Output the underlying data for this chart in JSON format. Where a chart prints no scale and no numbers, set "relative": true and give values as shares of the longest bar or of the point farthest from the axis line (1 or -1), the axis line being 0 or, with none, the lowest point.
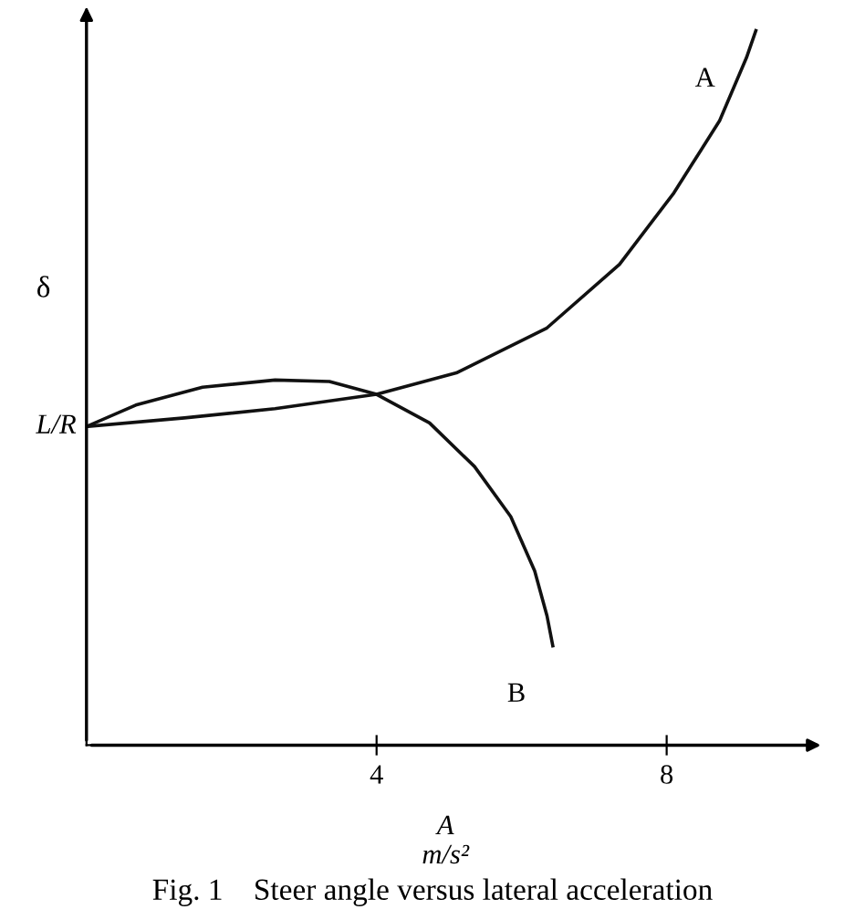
{
  "chart_data": {
    "type": "line",
    "title": "Fig. 1    Steer angle versus lateral acceleration",
    "xlabel": "A\nm/s²",
    "ylabel": "δ",
    "relative": true,
    "xlim": [
      0,
      9.9
    ],
    "xticks": [
      4,
      8
    ],
    "grid": false,
    "marker": "none",
    "line_style": "solid",
    "annotations": [
      {
        "text": "L/R",
        "x": 0,
        "y": 0.446
      }
    ],
    "series": [
      {
        "name": "A",
        "color": "#111111",
        "x": [
          0,
          1.35,
          2.6,
          4,
          5.1,
          6.35,
          7.35,
          8.1,
          8.73,
          9.1,
          9.23
        ],
        "values": [
          0.446,
          0.458,
          0.471,
          0.491,
          0.521,
          0.584,
          0.673,
          0.773,
          0.874,
          0.962,
          1
        ]
      },
      {
        "name": "B",
        "color": "#111111",
        "x": [
          0,
          0.68,
          1.6,
          2.6,
          3.35,
          4,
          4.73,
          5.35,
          5.85,
          6.18,
          6.35,
          6.43
        ],
        "values": [
          0.446,
          0.476,
          0.501,
          0.511,
          0.509,
          0.491,
          0.451,
          0.39,
          0.32,
          0.244,
          0.181,
          0.139
        ]
      }
    ]
  }
}
